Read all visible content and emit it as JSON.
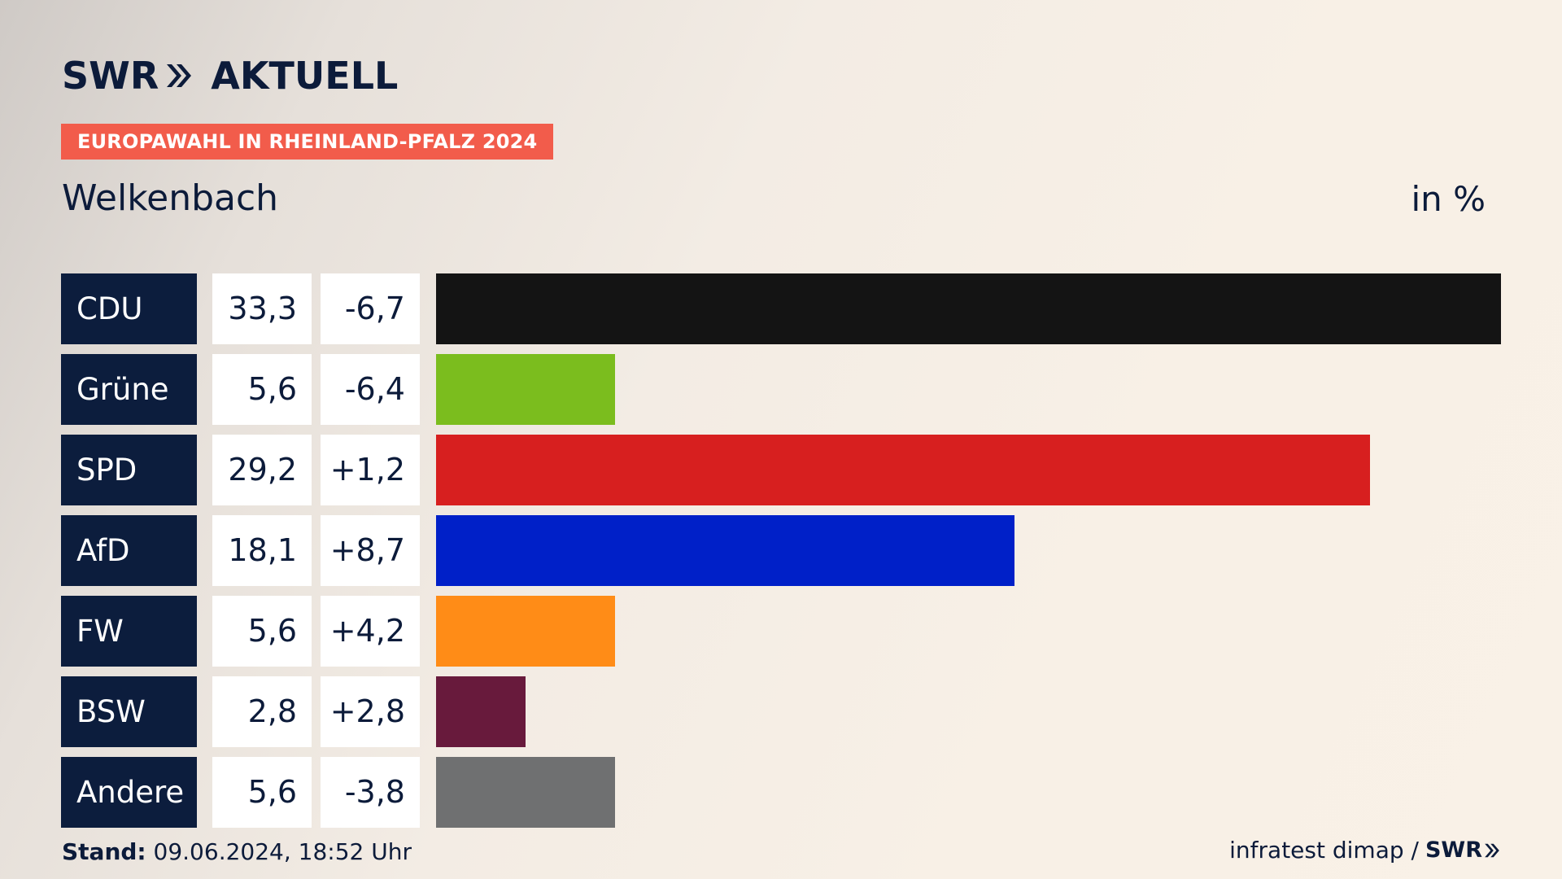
{
  "logo": {
    "brand": "SWR",
    "product": "AKTUELL"
  },
  "tag": "EUROPAWAHL IN RHEINLAND-PFALZ 2024",
  "region": "Welkenbach",
  "unit": "in %",
  "footer": {
    "stand_label": "Stand:",
    "stand_value": "09.06.2024, 18:52 Uhr",
    "source": "infratest dimap /",
    "source_brand": "SWR"
  },
  "chart_data": {
    "type": "bar",
    "orientation": "horizontal",
    "categories": [
      "CDU",
      "Grüne",
      "SPD",
      "AfD",
      "FW",
      "BSW",
      "Andere"
    ],
    "values": [
      33.3,
      5.6,
      29.2,
      18.1,
      5.6,
      2.8,
      5.6
    ],
    "value_labels": [
      "33,3",
      "5,6",
      "29,2",
      "18,1",
      "5,6",
      "2,8",
      "5,6"
    ],
    "diff_labels": [
      "-6,7",
      "-6,4",
      "+1,2",
      "+8,7",
      "+4,2",
      "+2,8",
      "-3,8"
    ],
    "colors": [
      "#141414",
      "#7bbd1e",
      "#d71f1f",
      "#0020c8",
      "#ff8c17",
      "#681a3c",
      "#6f7071"
    ],
    "xlim": [
      0,
      33.3
    ],
    "grid": false
  }
}
